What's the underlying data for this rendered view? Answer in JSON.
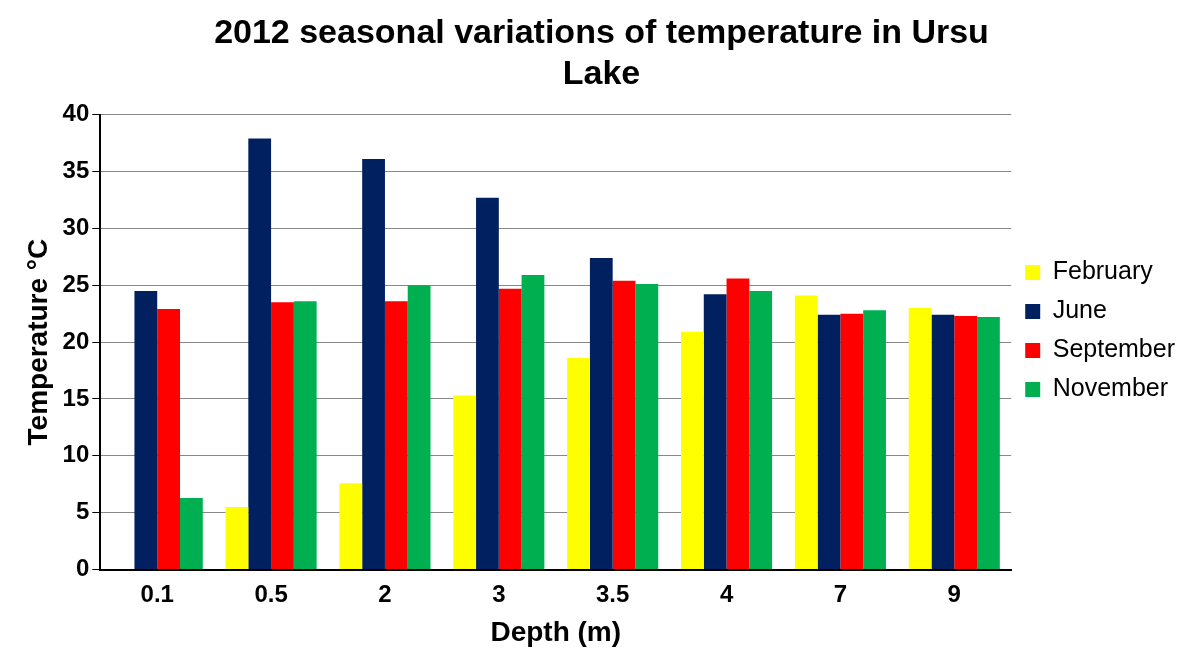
{
  "chart_data": {
    "type": "bar",
    "title": "2012 seasonal variations of temperature in Ursu Lake",
    "xlabel": "Depth (m)",
    "ylabel": "Temperature °C",
    "categories": [
      "0.1",
      "0.5",
      "2",
      "3",
      "3.5",
      "4",
      "7",
      "9"
    ],
    "series": [
      {
        "name": "February",
        "color": "#ffff00",
        "values": [
          null,
          5.5,
          7.6,
          15.3,
          18.6,
          20.9,
          24.1,
          23
        ]
      },
      {
        "name": "June",
        "color": "#002060",
        "values": [
          24.5,
          37.9,
          36.1,
          32.7,
          27.4,
          24.2,
          22.4,
          22.4
        ]
      },
      {
        "name": "September",
        "color": "#ff0000",
        "values": [
          22.9,
          23.5,
          23.6,
          24.7,
          25.4,
          25.6,
          22.5,
          22.3
        ]
      },
      {
        "name": "November",
        "color": "#00b050",
        "values": [
          6.3,
          23.6,
          25,
          25.9,
          25.1,
          24.5,
          22.8,
          22.2
        ]
      }
    ],
    "ylim": [
      0,
      40
    ],
    "yticks": [
      0,
      5,
      10,
      15,
      20,
      25,
      30,
      35,
      40
    ],
    "grid": "y",
    "legend": "right"
  }
}
